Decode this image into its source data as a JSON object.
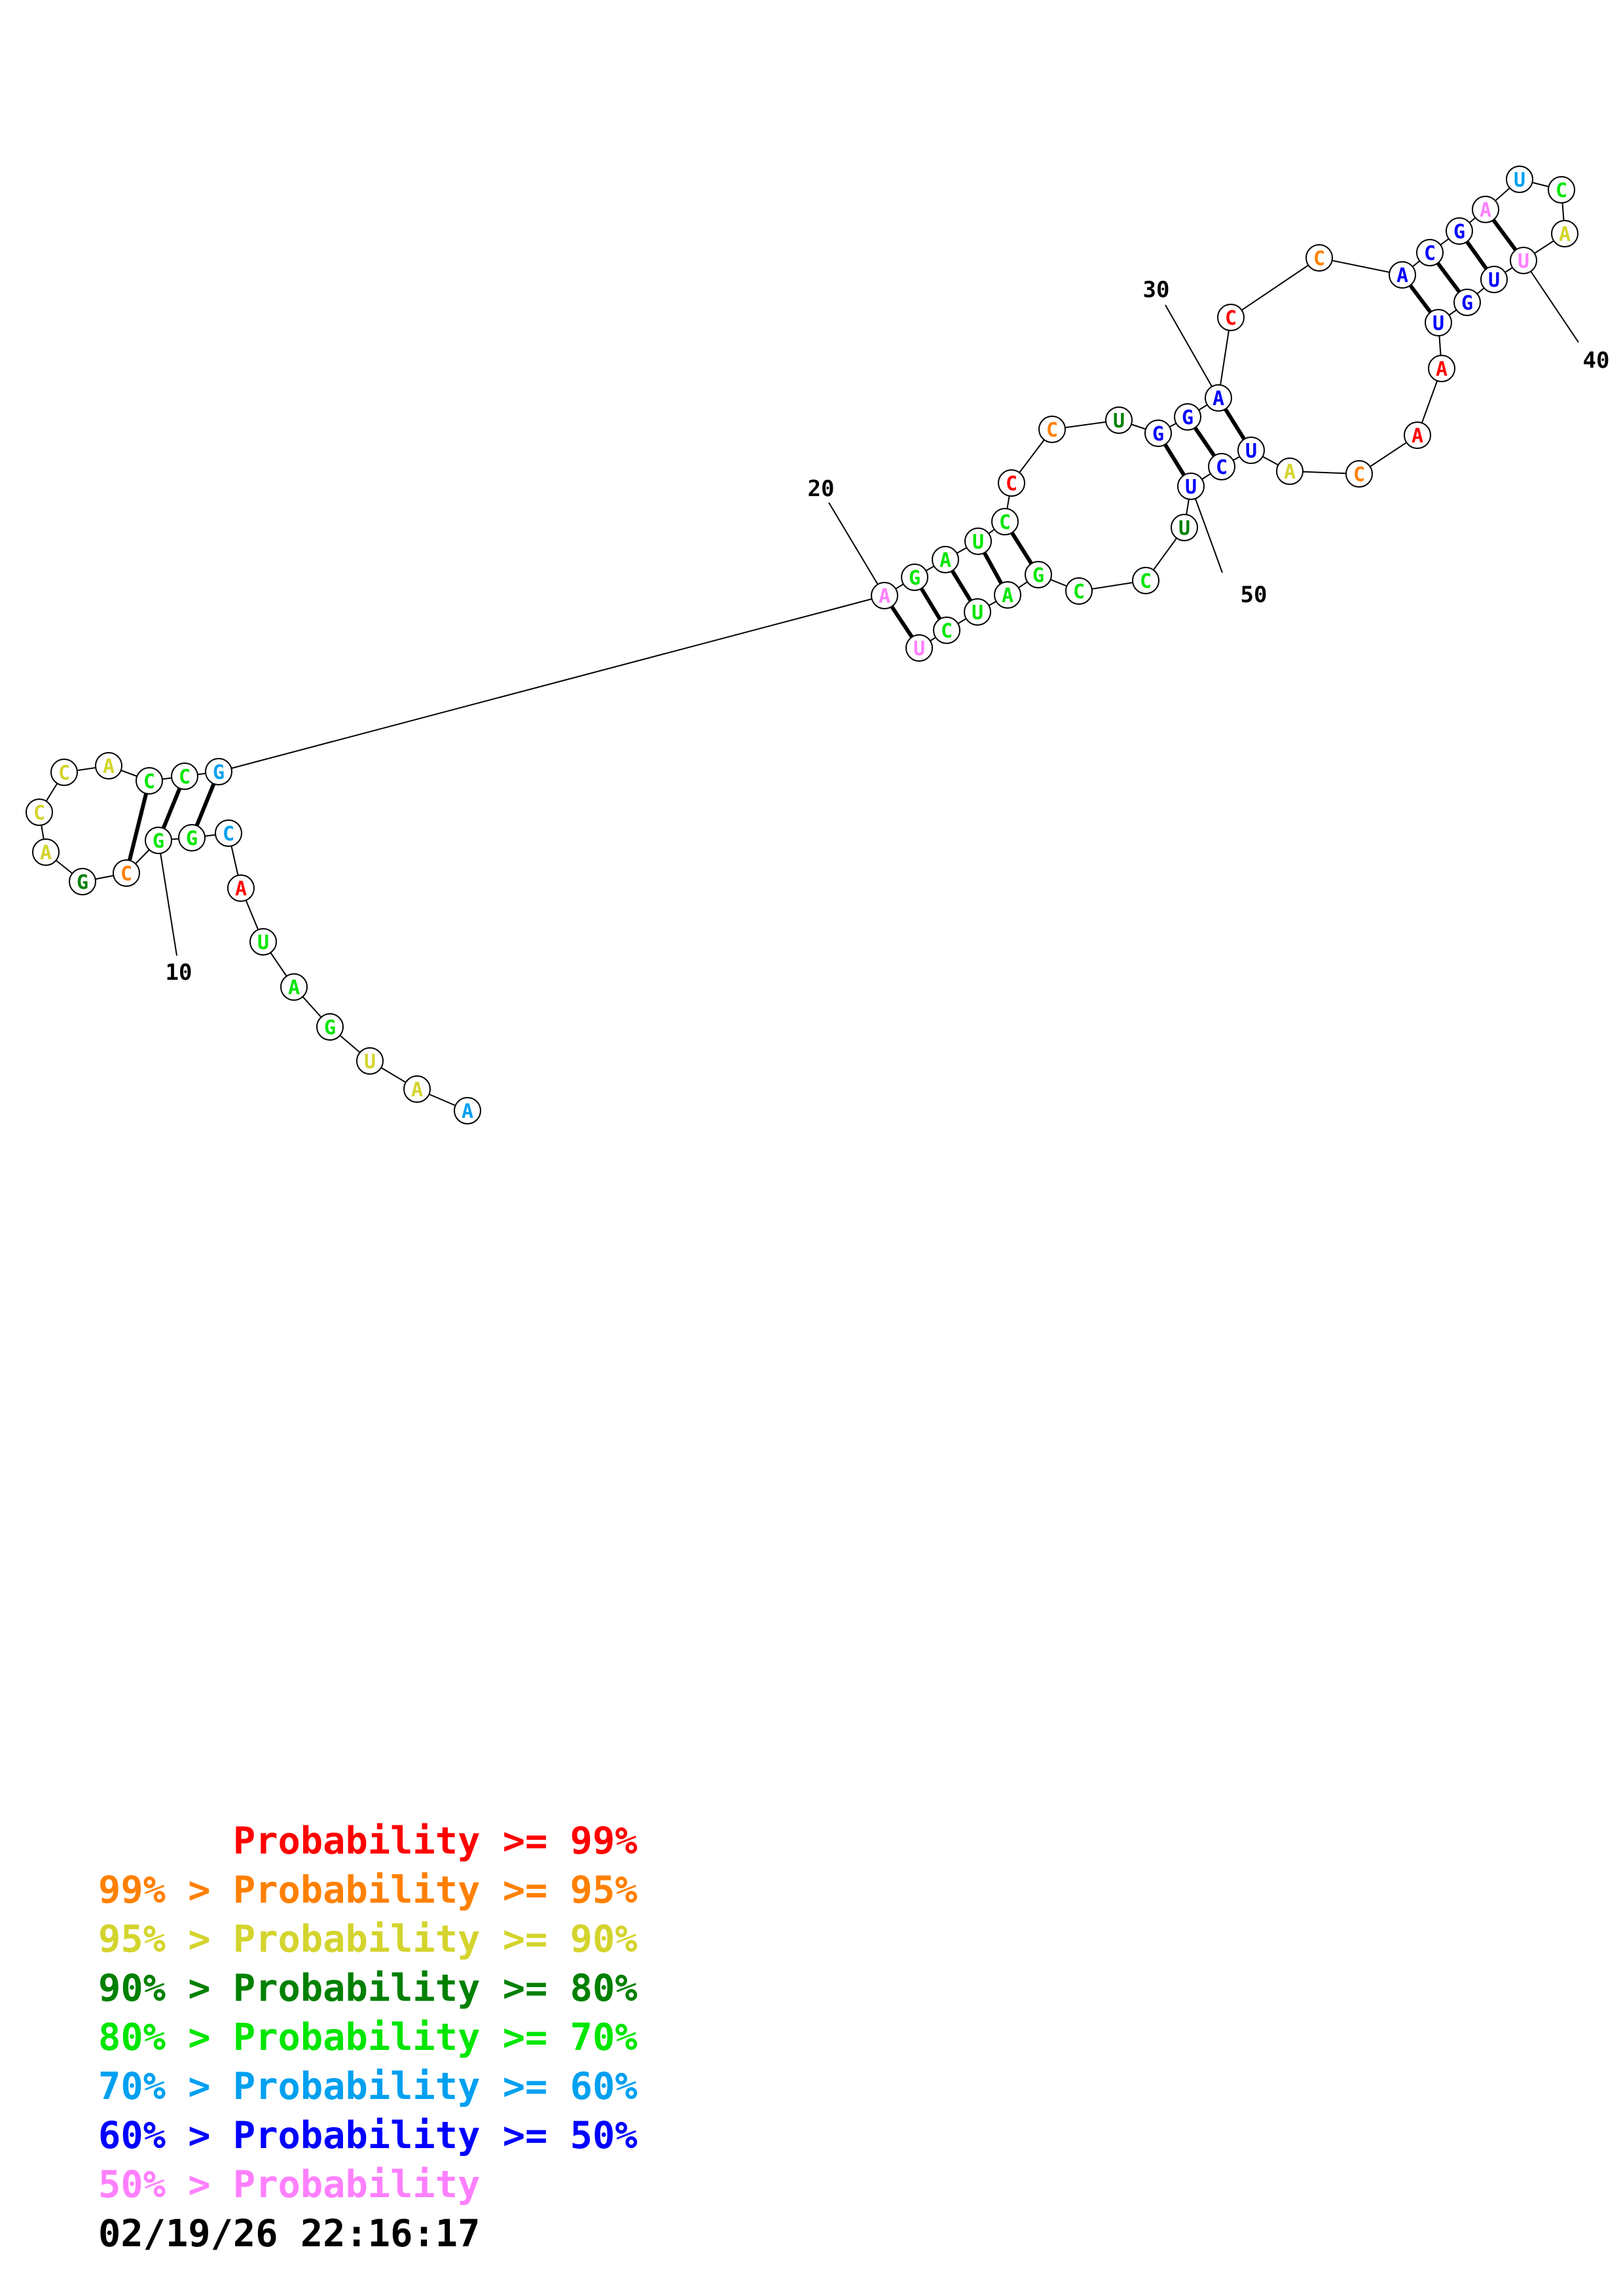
{
  "structure": {
    "nucleotides": [
      {
        "n": 1,
        "base": "A",
        "p": 5
      },
      {
        "n": 2,
        "base": "A",
        "p": 2
      },
      {
        "n": 3,
        "base": "U",
        "p": 2
      },
      {
        "n": 4,
        "base": "G",
        "p": 4
      },
      {
        "n": 5,
        "base": "A",
        "p": 4
      },
      {
        "n": 6,
        "base": "U",
        "p": 4
      },
      {
        "n": 7,
        "base": "A",
        "p": 0
      },
      {
        "n": 8,
        "base": "C",
        "p": 5
      },
      {
        "n": 9,
        "base": "G",
        "p": 4
      },
      {
        "n": 10,
        "base": "G",
        "p": 4
      },
      {
        "n": 11,
        "base": "C",
        "p": 1
      },
      {
        "n": 12,
        "base": "G",
        "p": 3
      },
      {
        "n": 13,
        "base": "A",
        "p": 2
      },
      {
        "n": 14,
        "base": "C",
        "p": 2
      },
      {
        "n": 15,
        "base": "C",
        "p": 2
      },
      {
        "n": 16,
        "base": "A",
        "p": 2
      },
      {
        "n": 17,
        "base": "C",
        "p": 4
      },
      {
        "n": 18,
        "base": "C",
        "p": 4
      },
      {
        "n": 19,
        "base": "G",
        "p": 5
      },
      {
        "n": 20,
        "base": "A",
        "p": 7
      },
      {
        "n": 21,
        "base": "G",
        "p": 4
      },
      {
        "n": 22,
        "base": "A",
        "p": 4
      },
      {
        "n": 23,
        "base": "U",
        "p": 4
      },
      {
        "n": 24,
        "base": "C",
        "p": 4
      },
      {
        "n": 25,
        "base": "C",
        "p": 0
      },
      {
        "n": 26,
        "base": "C",
        "p": 1
      },
      {
        "n": 27,
        "base": "U",
        "p": 3
      },
      {
        "n": 28,
        "base": "G",
        "p": 6
      },
      {
        "n": 29,
        "base": "G",
        "p": 6
      },
      {
        "n": 30,
        "base": "A",
        "p": 6
      },
      {
        "n": 31,
        "base": "C",
        "p": 0
      },
      {
        "n": 32,
        "base": "C",
        "p": 1
      },
      {
        "n": 33,
        "base": "A",
        "p": 6
      },
      {
        "n": 34,
        "base": "C",
        "p": 6
      },
      {
        "n": 35,
        "base": "G",
        "p": 6
      },
      {
        "n": 36,
        "base": "A",
        "p": 7
      },
      {
        "n": 37,
        "base": "U",
        "p": 5
      },
      {
        "n": 38,
        "base": "C",
        "p": 4
      },
      {
        "n": 39,
        "base": "A",
        "p": 2
      },
      {
        "n": 40,
        "base": "U",
        "p": 7
      },
      {
        "n": 41,
        "base": "U",
        "p": 6
      },
      {
        "n": 42,
        "base": "G",
        "p": 6
      },
      {
        "n": 43,
        "base": "U",
        "p": 6
      },
      {
        "n": 44,
        "base": "A",
        "p": 0
      },
      {
        "n": 45,
        "base": "A",
        "p": 0
      },
      {
        "n": 46,
        "base": "C",
        "p": 1
      },
      {
        "n": 47,
        "base": "A",
        "p": 2
      },
      {
        "n": 48,
        "base": "U",
        "p": 6
      },
      {
        "n": 49,
        "base": "C",
        "p": 6
      },
      {
        "n": 50,
        "base": "U",
        "p": 6
      },
      {
        "n": 51,
        "base": "U",
        "p": 3
      },
      {
        "n": 52,
        "base": "C",
        "p": 4
      },
      {
        "n": 53,
        "base": "C",
        "p": 4
      },
      {
        "n": 54,
        "base": "G",
        "p": 4
      },
      {
        "n": 55,
        "base": "A",
        "p": 4
      },
      {
        "n": 56,
        "base": "U",
        "p": 4
      },
      {
        "n": 57,
        "base": "C",
        "p": 4
      },
      {
        "n": 58,
        "base": "U",
        "p": 7
      }
    ],
    "pairs": [
      [
        9,
        19
      ],
      [
        10,
        18
      ],
      [
        11,
        17
      ],
      [
        20,
        58
      ],
      [
        21,
        57
      ],
      [
        22,
        56
      ],
      [
        23,
        55
      ],
      [
        24,
        54
      ],
      [
        28,
        50
      ],
      [
        29,
        49
      ],
      [
        30,
        48
      ],
      [
        33,
        43
      ],
      [
        34,
        42
      ],
      [
        35,
        41
      ],
      [
        36,
        40
      ]
    ],
    "index_labels": [
      "10",
      "20",
      "30",
      "40",
      "50"
    ],
    "probability_colors": [
      "#ff0000",
      "#ff8000",
      "#d4d42e",
      "#008000",
      "#00e600",
      "#00a0f0",
      "#0000ff",
      "#ff80ff"
    ]
  },
  "legend": [
    {
      "text": "      Probability >= 99%",
      "color": "#ff0000"
    },
    {
      "text": "99% > Probability >= 95%",
      "color": "#ff8000"
    },
    {
      "text": "95% > Probability >= 90%",
      "color": "#d4d42e"
    },
    {
      "text": "90% > Probability >= 80%",
      "color": "#008000"
    },
    {
      "text": "80% > Probability >= 70%",
      "color": "#00e600"
    },
    {
      "text": "70% > Probability >= 60%",
      "color": "#00a0f0"
    },
    {
      "text": "60% > Probability >= 50%",
      "color": "#0000ff"
    },
    {
      "text": "50% > Probability",
      "color": "#ff80ff"
    }
  ],
  "timestamp": "02/19/26 22:16:17"
}
